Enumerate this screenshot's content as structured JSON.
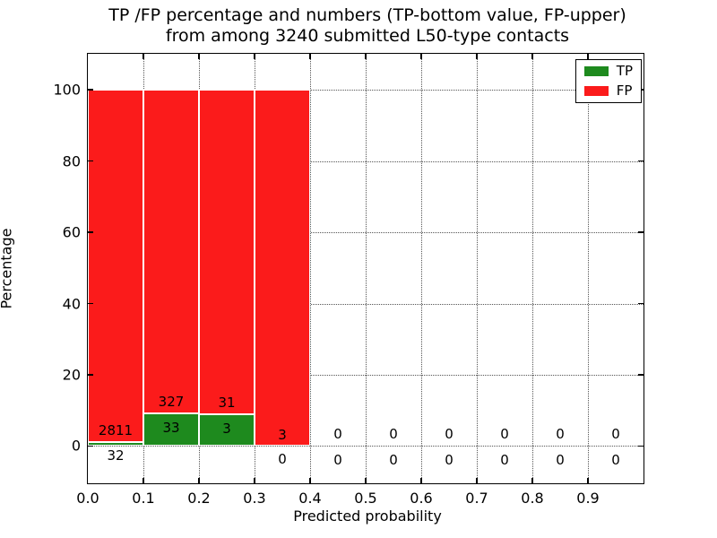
{
  "title": {
    "line1": "TP /FP percentage and numbers (TP-bottom value, FP-upper)",
    "line2": "from among 3240 submitted L50-type contacts"
  },
  "axes": {
    "xlabel": "Predicted probability",
    "ylabel": "Percentage",
    "x_tick_labels": [
      "0.0",
      "0.1",
      "0.2",
      "0.3",
      "0.4",
      "0.5",
      "0.6",
      "0.7",
      "0.8",
      "0.9"
    ],
    "x_tick_values": [
      0.0,
      0.1,
      0.2,
      0.3,
      0.4,
      0.5,
      0.6,
      0.7,
      0.8,
      0.9
    ],
    "y_tick_labels": [
      "0",
      "20",
      "40",
      "60",
      "80",
      "100"
    ],
    "y_tick_values": [
      0,
      20,
      40,
      60,
      80,
      100
    ]
  },
  "legend": {
    "items": [
      {
        "label": "TP",
        "color": "#1e8a1e"
      },
      {
        "label": "FP",
        "color": "#fb1b1b"
      }
    ]
  },
  "colors": {
    "tp": "#1e8a1e",
    "fp": "#fb1b1b",
    "bar_edge": "#ffffff",
    "grid": "#555555"
  },
  "chart_data": {
    "type": "bar",
    "stacked": true,
    "normalization": "each non-empty bar stacked to 100%",
    "title": "TP /FP percentage and numbers (TP-bottom value, FP-upper) from among 3240 submitted L50-type contacts",
    "xlabel": "Predicted probability",
    "ylabel": "Percentage",
    "xlim": [
      0.0,
      1.0
    ],
    "ylim": [
      -10.45,
      110.1
    ],
    "grid": "dotted both axes",
    "legend_position": "upper right",
    "total_submitted_contacts": 3240,
    "contact_type": "L50",
    "categories": [
      "0.0-0.1",
      "0.1-0.2",
      "0.2-0.3",
      "0.3-0.4",
      "0.4-0.5",
      "0.5-0.6",
      "0.6-0.7",
      "0.7-0.8",
      "0.8-0.9",
      "0.9-1.0"
    ],
    "series": [
      {
        "name": "TP",
        "counts": [
          32,
          33,
          3,
          0,
          0,
          0,
          0,
          0,
          0,
          0
        ],
        "pct": [
          1.13,
          9.17,
          8.82,
          0,
          0,
          0,
          0,
          0,
          0,
          0
        ]
      },
      {
        "name": "FP",
        "counts": [
          2811,
          327,
          31,
          3,
          0,
          0,
          0,
          0,
          0,
          0
        ],
        "pct": [
          98.87,
          90.83,
          91.18,
          100,
          0,
          0,
          0,
          0,
          0,
          0
        ]
      }
    ],
    "bins": [
      {
        "x0": 0.0,
        "x1": 0.1,
        "tp": 32,
        "fp": 2811,
        "tp_pct": 1.13,
        "fp_pct": 98.87,
        "tp_label": "32",
        "fp_label": "2811",
        "tp_label_y": -2.6,
        "fp_label_y": 4.4
      },
      {
        "x0": 0.1,
        "x1": 0.2,
        "tp": 33,
        "fp": 327,
        "tp_pct": 9.17,
        "fp_pct": 90.83,
        "tp_label": "33",
        "fp_label": "327",
        "tp_label_y": 5.2,
        "fp_label_y": 12.5
      },
      {
        "x0": 0.2,
        "x1": 0.3,
        "tp": 3,
        "fp": 31,
        "tp_pct": 8.82,
        "fp_pct": 91.18,
        "tp_label": "3",
        "fp_label": "31",
        "tp_label_y": 4.9,
        "fp_label_y": 12.2
      },
      {
        "x0": 0.3,
        "x1": 0.4,
        "tp": 0,
        "fp": 3,
        "tp_pct": 0,
        "fp_pct": 100,
        "tp_label": "0",
        "fp_label": "3",
        "tp_label_y": -3.7,
        "fp_label_y": 3.1
      },
      {
        "x0": 0.4,
        "x1": 0.5,
        "tp": 0,
        "fp": 0,
        "tp_pct": 0,
        "fp_pct": 0,
        "tp_label": "0",
        "fp_label": "0",
        "tp_label_y": -3.9,
        "fp_label_y": 3.4
      },
      {
        "x0": 0.5,
        "x1": 0.6,
        "tp": 0,
        "fp": 0,
        "tp_pct": 0,
        "fp_pct": 0,
        "tp_label": "0",
        "fp_label": "0",
        "tp_label_y": -3.9,
        "fp_label_y": 3.4
      },
      {
        "x0": 0.6,
        "x1": 0.7,
        "tp": 0,
        "fp": 0,
        "tp_pct": 0,
        "fp_pct": 0,
        "tp_label": "0",
        "fp_label": "0",
        "tp_label_y": -3.9,
        "fp_label_y": 3.4
      },
      {
        "x0": 0.7,
        "x1": 0.8,
        "tp": 0,
        "fp": 0,
        "tp_pct": 0,
        "fp_pct": 0,
        "tp_label": "0",
        "fp_label": "0",
        "tp_label_y": -3.9,
        "fp_label_y": 3.4
      },
      {
        "x0": 0.8,
        "x1": 0.9,
        "tp": 0,
        "fp": 0,
        "tp_pct": 0,
        "fp_pct": 0,
        "tp_label": "0",
        "fp_label": "0",
        "tp_label_y": -3.9,
        "fp_label_y": 3.4
      },
      {
        "x0": 0.9,
        "x1": 1.0,
        "tp": 0,
        "fp": 0,
        "tp_pct": 0,
        "fp_pct": 0,
        "tp_label": "0",
        "fp_label": "0",
        "tp_label_y": -3.9,
        "fp_label_y": 3.4
      }
    ]
  }
}
